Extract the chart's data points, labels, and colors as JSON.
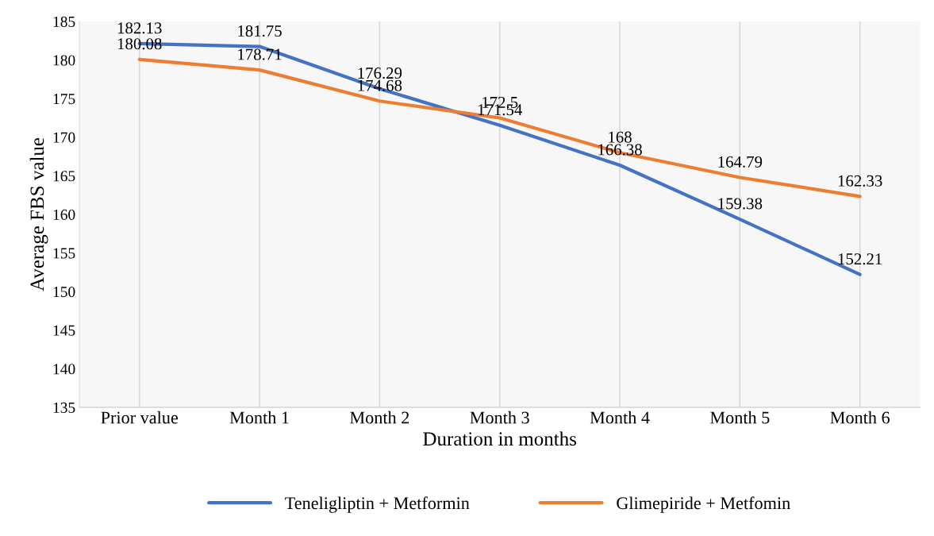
{
  "chart_data": {
    "type": "line",
    "xlabel": "Duration in months",
    "ylabel": "Average FBS value",
    "categories": [
      "Prior value",
      "Month 1",
      "Month 2",
      "Month 3",
      "Month 4",
      "Month 5",
      "Month 6"
    ],
    "series": [
      {
        "name": "Teneligliptin + Metformin",
        "color": "#4472c4",
        "values": [
          182.13,
          181.75,
          176.29,
          171.54,
          166.38,
          159.38,
          152.21
        ]
      },
      {
        "name": "Glimepiride + Metfomin",
        "color": "#ed7d31",
        "values": [
          180.08,
          178.71,
          174.68,
          172.5,
          168,
          164.79,
          162.33
        ]
      }
    ],
    "ylim": [
      135,
      185
    ],
    "yticks": [
      135,
      140,
      145,
      150,
      155,
      160,
      165,
      170,
      175,
      180,
      185
    ],
    "grid": "x",
    "legend": "bottom",
    "data_labels": true,
    "marker": "none",
    "line_style": "solid"
  }
}
